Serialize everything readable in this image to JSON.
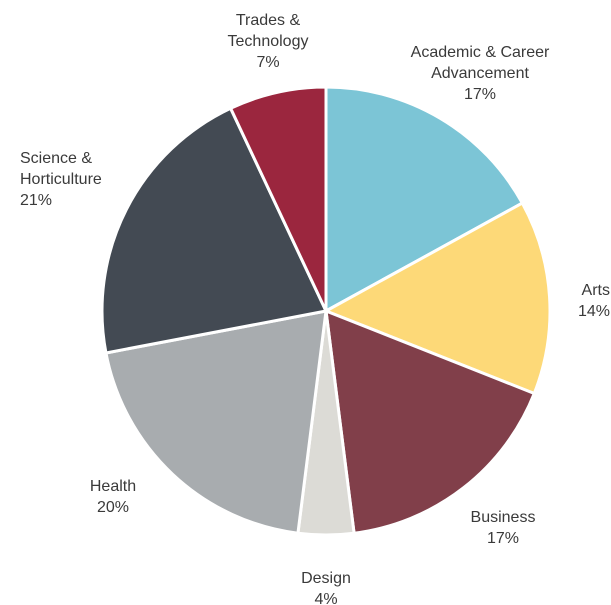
{
  "chart_data": {
    "type": "pie",
    "categories": [
      "Academic & Career Advancement",
      "Arts",
      "Business",
      "Design",
      "Health",
      "Science & Horticulture",
      "Trades & Technology"
    ],
    "values": [
      17,
      14,
      17,
      4,
      20,
      21,
      7
    ],
    "value_labels": [
      "17%",
      "14%",
      "17%",
      "4%",
      "20%",
      "21%",
      "7%"
    ],
    "colors": [
      "#7cc5d6",
      "#fdd978",
      "#813f4a",
      "#dcdbd6",
      "#a8acaf",
      "#434a53",
      "#9b263e"
    ]
  }
}
